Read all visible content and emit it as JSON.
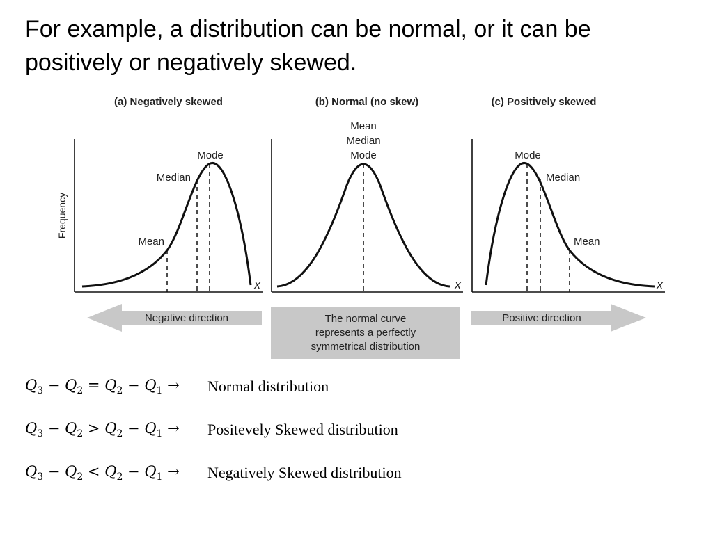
{
  "slide": {
    "title": "For example, a distribution can be normal, or it can be positively or negatively skewed."
  },
  "figure": {
    "y_axis_label": "Frequency",
    "x_axis_label": "X",
    "panels": [
      {
        "title": "(a) Negatively skewed",
        "labels": {
          "mean": "Mean",
          "median": "Median",
          "mode": "Mode"
        }
      },
      {
        "title": "(b) Normal (no skew)",
        "labels": {
          "mean": "Mean",
          "median": "Median",
          "mode": "Mode"
        }
      },
      {
        "title": "(c) Positively skewed",
        "labels": {
          "mean": "Mean",
          "median": "Median",
          "mode": "Mode"
        }
      }
    ],
    "arrows": {
      "left": "Negative direction",
      "center": [
        "The normal curve",
        "represents a perfectly",
        "symmetrical distribution"
      ],
      "right": "Positive direction"
    },
    "colors": {
      "line": "#111111",
      "arrow": "#c8c8c8",
      "center_box": "#c8c8c8"
    }
  },
  "formulas": [
    {
      "lhs_a": "Q",
      "lhs_a_sub": "3",
      "lhs_b": "Q",
      "lhs_b_sub": "2",
      "operator": "=",
      "rhs_a": "Q",
      "rhs_a_sub": "2",
      "rhs_b": "Q",
      "rhs_b_sub": "1",
      "arrow": "→",
      "result": "Normal distribution"
    },
    {
      "lhs_a": "Q",
      "lhs_a_sub": "3",
      "lhs_b": "Q",
      "lhs_b_sub": "2",
      "operator": ">",
      "rhs_a": "Q",
      "rhs_a_sub": "2",
      "rhs_b": "Q",
      "rhs_b_sub": "1",
      "arrow": "→",
      "result": "Positevely Skewed distribution"
    },
    {
      "lhs_a": "Q",
      "lhs_a_sub": "3",
      "lhs_b": "Q",
      "lhs_b_sub": "2",
      "operator": "<",
      "rhs_a": "Q",
      "rhs_a_sub": "2",
      "rhs_b": "Q",
      "rhs_b_sub": "1",
      "arrow": "→",
      "result": "Negatively Skewed distribution"
    }
  ]
}
